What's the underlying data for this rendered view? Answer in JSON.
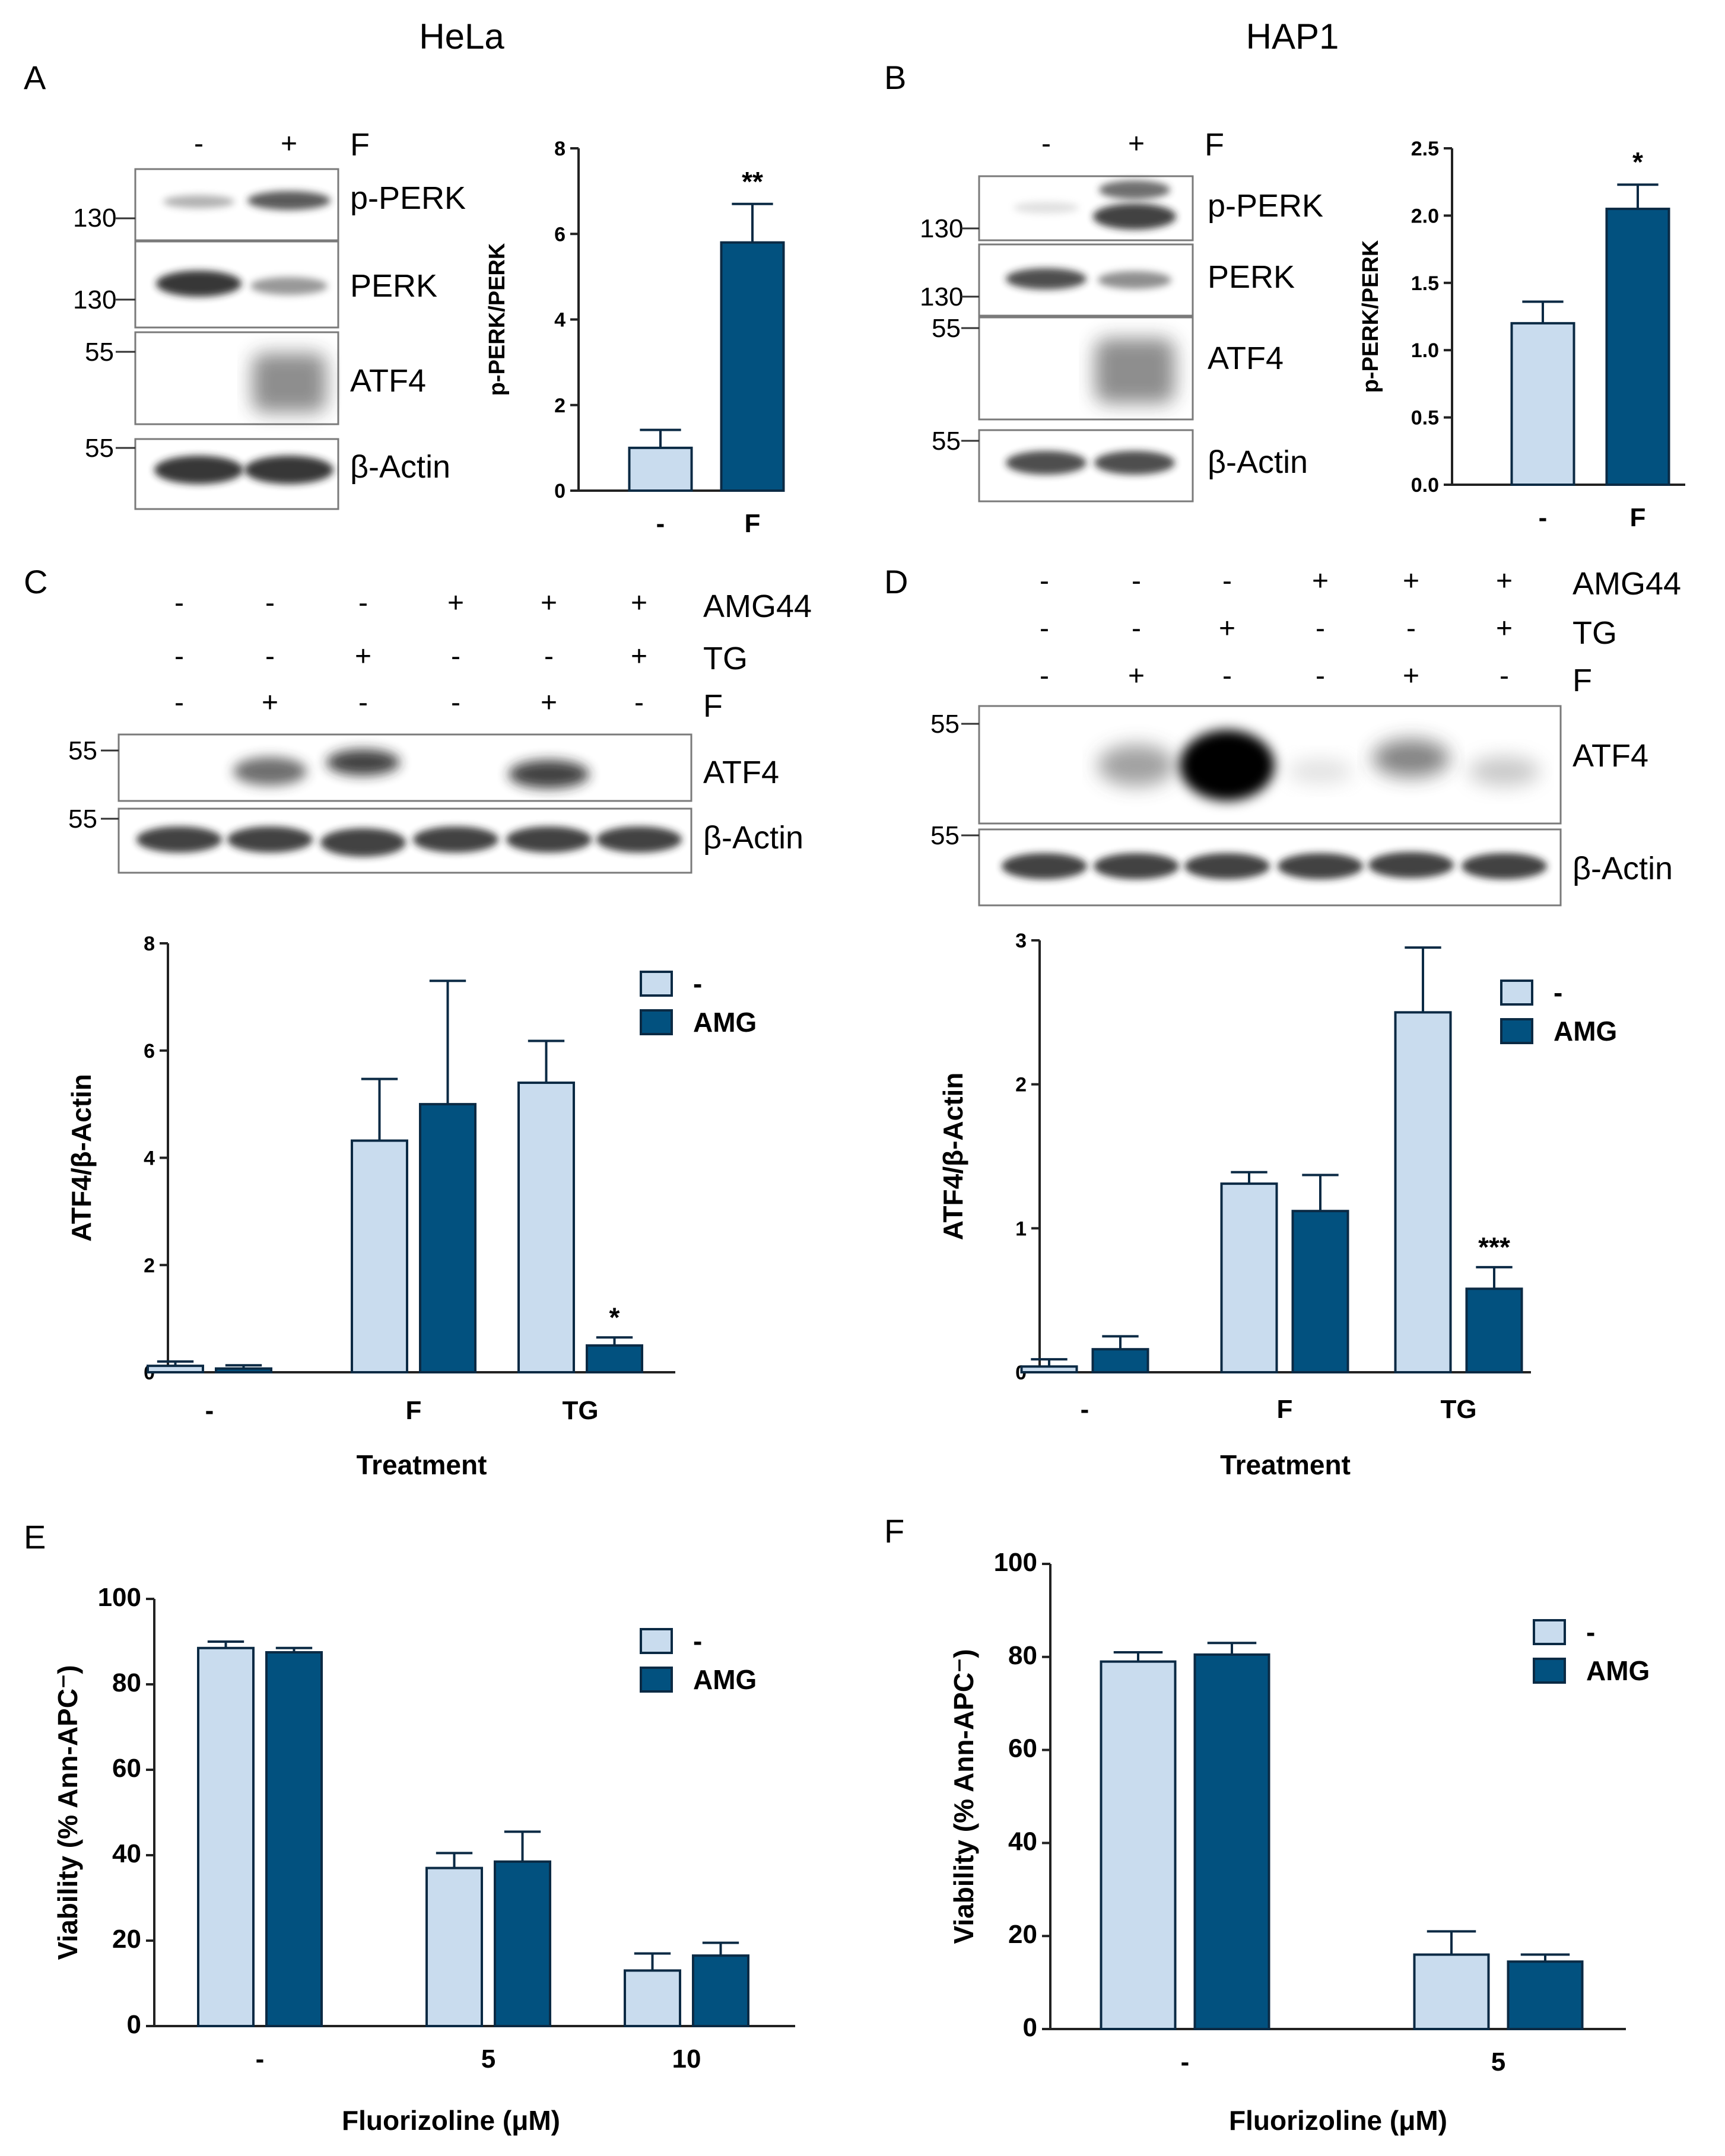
{
  "colors": {
    "light": "#c9dcee",
    "dark": "#02517f",
    "stroke": "#0b2a44"
  },
  "titles": {
    "left": "HeLa",
    "right": "HAP1"
  },
  "panels": [
    "A",
    "B",
    "C",
    "D",
    "E",
    "F"
  ],
  "blots": {
    "A": {
      "signs": [
        [
          "-",
          "+"
        ]
      ],
      "sign_labels": [
        "F"
      ],
      "bands": [
        "p-PERK",
        "PERK",
        "ATF4",
        "β-Actin"
      ],
      "mw": [
        "130",
        "130",
        "55",
        "55"
      ]
    },
    "B": {
      "signs": [
        [
          "-",
          "+"
        ]
      ],
      "sign_labels": [
        "F"
      ],
      "bands": [
        "p-PERK",
        "PERK",
        "ATF4",
        "β-Actin"
      ],
      "mw": [
        "130",
        "130",
        "55",
        "55"
      ]
    },
    "C": {
      "signs": [
        [
          "-",
          "-",
          "-",
          "+",
          "+",
          "+"
        ],
        [
          "-",
          "-",
          "+",
          "-",
          "-",
          "+"
        ],
        [
          "-",
          "+",
          "-",
          "-",
          "+",
          "-"
        ]
      ],
      "sign_labels": [
        "AMG44",
        "TG",
        "F"
      ],
      "bands": [
        "ATF4",
        "β-Actin"
      ],
      "mw": [
        "55",
        "55"
      ]
    },
    "D": {
      "signs": [
        [
          "-",
          "-",
          "-",
          "+",
          "+",
          "+"
        ],
        [
          "-",
          "-",
          "+",
          "-",
          "-",
          "+"
        ],
        [
          "-",
          "+",
          "-",
          "-",
          "+",
          "-"
        ]
      ],
      "sign_labels": [
        "AMG44",
        "TG",
        "F"
      ],
      "bands": [
        "ATF4",
        "β-Actin"
      ],
      "mw": [
        "55",
        "55"
      ]
    }
  },
  "chart_data": [
    {
      "id": "A",
      "type": "bar",
      "categories": [
        "-",
        "F"
      ],
      "values": [
        1.0,
        5.8
      ],
      "errors": [
        0.42,
        0.9
      ],
      "series_fill": [
        "light",
        "dark"
      ],
      "ylabel": "p-PERK/PERK",
      "ylim": [
        0,
        8
      ],
      "yticks": [
        "0",
        "2",
        "4",
        "6",
        "8"
      ],
      "annotations": [
        {
          "category": "F",
          "text": "**"
        }
      ]
    },
    {
      "id": "B",
      "type": "bar",
      "categories": [
        "-",
        "F"
      ],
      "values": [
        1.2,
        2.05
      ],
      "errors": [
        0.16,
        0.18
      ],
      "series_fill": [
        "light",
        "dark"
      ],
      "ylabel": "p-PERK/PERK",
      "ylim": [
        0,
        2.5
      ],
      "yticks": [
        "0.0",
        "0.5",
        "1.0",
        "1.5",
        "2.0",
        "2.5"
      ],
      "annotations": [
        {
          "category": "F",
          "text": "*"
        }
      ]
    },
    {
      "id": "C",
      "type": "bar",
      "categories": [
        "-",
        "F",
        "TG"
      ],
      "series": [
        {
          "name": "-",
          "values": [
            0.12,
            4.32,
            5.4
          ],
          "errors": [
            0.08,
            1.15,
            0.78
          ]
        },
        {
          "name": "AMG",
          "values": [
            0.07,
            5.0,
            0.5
          ],
          "errors": [
            0.06,
            2.3,
            0.15
          ]
        }
      ],
      "xlabel": "Treatment",
      "ylabel": "ATF4/β-Actin",
      "ylim": [
        0,
        8
      ],
      "yticks": [
        "0",
        "2",
        "4",
        "6",
        "8"
      ],
      "legend": "top-right",
      "annotations": [
        {
          "category": "TG",
          "series": "AMG",
          "text": "*"
        }
      ]
    },
    {
      "id": "D",
      "type": "bar",
      "categories": [
        "-",
        "F",
        "TG"
      ],
      "series": [
        {
          "name": "-",
          "values": [
            0.04,
            1.31,
            2.5
          ],
          "errors": [
            0.05,
            0.08,
            0.45
          ]
        },
        {
          "name": "AMG",
          "values": [
            0.16,
            1.12,
            0.58
          ],
          "errors": [
            0.09,
            0.25,
            0.15
          ]
        }
      ],
      "xlabel": "Treatment",
      "ylabel": "ATF4/β-Actin",
      "ylim": [
        0,
        3
      ],
      "yticks": [
        "0",
        "1",
        "2",
        "3"
      ],
      "legend": "top-right",
      "annotations": [
        {
          "category": "TG",
          "series": "AMG",
          "text": "***"
        }
      ]
    },
    {
      "id": "E",
      "type": "bar",
      "categories": [
        "-",
        "5",
        "10"
      ],
      "series": [
        {
          "name": "-",
          "values": [
            88.5,
            37.0,
            13.0
          ],
          "errors": [
            1.5,
            3.5,
            4.0
          ]
        },
        {
          "name": "AMG",
          "values": [
            87.5,
            38.5,
            16.5
          ],
          "errors": [
            1.0,
            7.0,
            3.0
          ]
        }
      ],
      "xlabel": "Fluorizoline (μM)",
      "ylabel": "Viability (% Ann-APC⁻)",
      "ylim": [
        0,
        100
      ],
      "yticks": [
        "0",
        "20",
        "40",
        "60",
        "80",
        "100"
      ],
      "legend": "top-right"
    },
    {
      "id": "F",
      "type": "bar",
      "categories": [
        "-",
        "5"
      ],
      "series": [
        {
          "name": "-",
          "values": [
            79.0,
            16.0
          ],
          "errors": [
            2.0,
            5.0
          ]
        },
        {
          "name": "AMG",
          "values": [
            80.5,
            14.5
          ],
          "errors": [
            2.5,
            1.5
          ]
        }
      ],
      "xlabel": "Fluorizoline (μM)",
      "ylabel": "Viability (% Ann-APC⁻)",
      "ylim": [
        0,
        100
      ],
      "yticks": [
        "0",
        "20",
        "40",
        "60",
        "80",
        "100"
      ],
      "legend": "top-right"
    }
  ]
}
